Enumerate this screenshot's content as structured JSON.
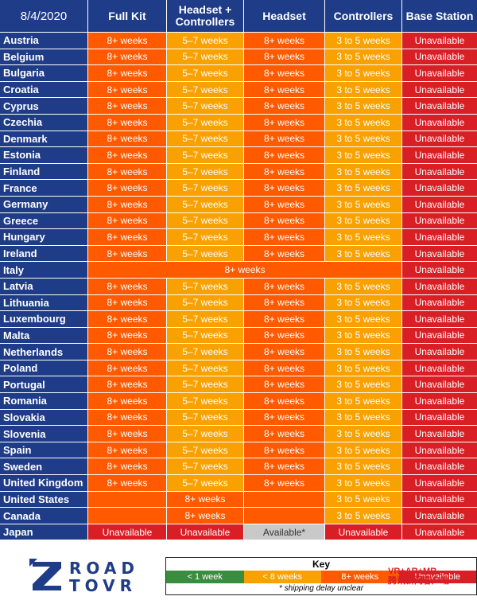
{
  "header": {
    "date": "8/4/2020",
    "full_kit": "Full Kit",
    "headset_controllers": "Headset + Controllers",
    "headset": "Headset",
    "controllers": "Controllers",
    "base_station": "Base Station"
  },
  "values": {
    "eight_plus": "8+ weeks",
    "five_seven": "5–7 weeks",
    "three_five": "3 to 5 weeks",
    "unavailable": "Unavailable",
    "available": "Available*"
  },
  "countries": [
    "Austria",
    "Belgium",
    "Bulgaria",
    "Croatia",
    "Cyprus",
    "Czechia",
    "Denmark",
    "Estonia",
    "Finland",
    "France",
    "Germany",
    "Greece",
    "Hungary",
    "Ireland",
    "Italy",
    "Latvia",
    "Lithuania",
    "Luxembourg",
    "Malta",
    "Netherlands",
    "Poland",
    "Portugal",
    "Romania",
    "Slovakia",
    "Slovenia",
    "Spain",
    "Sweden",
    "United Kingdom",
    "United States",
    "Canada",
    "Japan"
  ],
  "colors": {
    "orange": "#ff5a00",
    "amber": "#f9a100",
    "red": "#d91f26",
    "green": "#3a8c3f",
    "navy": "#1f3c88",
    "grey": "#c9c9c9"
  },
  "logo": {
    "line1": "ROAD",
    "line2": "TOVR"
  },
  "key": {
    "title": "Key",
    "less_1": "< 1 week",
    "less_8": "< 8 weeks",
    "eight_plus": "8+ weeks",
    "unavailable": "Unavailable",
    "note": "* shipping delay unclear"
  },
  "watermark": {
    "line1": "VR+AR+MR",
    "line2": "腾讯新闻客户端"
  }
}
